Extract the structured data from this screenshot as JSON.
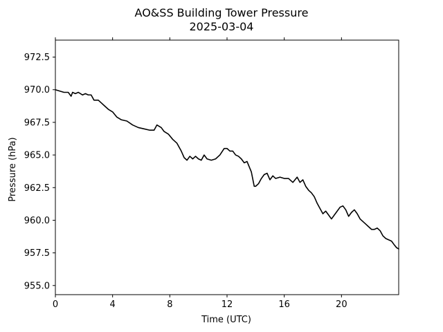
{
  "chart_data": {
    "type": "line",
    "title": "AO&SS Building Tower Pressure",
    "subtitle": "2025-03-04",
    "xlabel": "Time (UTC)",
    "ylabel": "Pressure (hPa)",
    "xlim": [
      0,
      24
    ],
    "ylim": [
      954.3,
      973.8
    ],
    "x_ticks": [
      0,
      4,
      8,
      12,
      16,
      20
    ],
    "x_tick_labels": [
      "0",
      "4",
      "8",
      "12",
      "16",
      "20"
    ],
    "y_ticks": [
      955.0,
      957.5,
      960.0,
      962.5,
      965.0,
      967.5,
      970.0,
      972.5
    ],
    "y_tick_labels": [
      "955.0",
      "957.5",
      "960.0",
      "962.5",
      "965.0",
      "967.5",
      "970.0",
      "972.5"
    ],
    "grid": false,
    "line_color": "#000000",
    "series": [
      {
        "x": [
          0.0,
          0.3,
          0.6,
          0.9,
          1.1,
          1.2,
          1.4,
          1.6,
          1.9,
          2.1,
          2.3,
          2.5,
          2.7,
          3.0,
          3.2,
          3.4,
          3.7,
          4.0,
          4.3,
          4.6,
          5.0,
          5.4,
          5.8,
          6.2,
          6.6,
          6.9,
          7.1,
          7.4,
          7.6,
          7.9,
          8.2,
          8.5,
          8.8,
          9.0,
          9.2,
          9.4,
          9.6,
          9.8,
          10.0,
          10.2,
          10.4,
          10.6,
          10.9,
          11.2,
          11.5,
          11.8,
          12.0,
          12.2,
          12.4,
          12.6,
          12.8,
          13.0,
          13.2,
          13.4,
          13.7,
          13.9,
          14.0,
          14.2,
          14.4,
          14.6,
          14.8,
          15.0,
          15.2,
          15.4,
          15.7,
          16.0,
          16.3,
          16.6,
          16.9,
          17.1,
          17.3,
          17.5,
          17.7,
          17.9,
          18.1,
          18.3,
          18.5,
          18.7,
          18.9,
          19.1,
          19.3,
          19.5,
          19.7,
          19.9,
          20.1,
          20.3,
          20.5,
          20.7,
          20.9,
          21.1,
          21.3,
          21.5,
          21.7,
          21.9,
          22.1,
          22.3,
          22.5,
          22.7,
          22.9,
          23.1,
          23.3,
          23.5,
          23.7,
          23.85,
          24.0
        ],
        "y": [
          970.0,
          969.9,
          969.8,
          969.8,
          969.5,
          969.8,
          969.7,
          969.8,
          969.6,
          969.7,
          969.6,
          969.6,
          969.2,
          969.2,
          969.0,
          968.8,
          968.5,
          968.3,
          967.9,
          967.7,
          967.6,
          967.3,
          967.1,
          967.0,
          966.9,
          966.9,
          967.3,
          967.1,
          966.8,
          966.6,
          966.2,
          965.9,
          965.3,
          964.8,
          964.6,
          964.9,
          964.7,
          964.9,
          964.7,
          964.6,
          965.0,
          964.7,
          964.6,
          964.7,
          965.0,
          965.5,
          965.5,
          965.3,
          965.3,
          965.0,
          964.9,
          964.7,
          964.4,
          964.5,
          963.7,
          962.6,
          962.6,
          962.8,
          963.2,
          963.5,
          963.6,
          963.1,
          963.4,
          963.2,
          963.3,
          963.2,
          963.2,
          962.9,
          963.3,
          962.9,
          963.1,
          962.6,
          962.3,
          962.1,
          961.8,
          961.3,
          960.9,
          960.5,
          960.7,
          960.4,
          960.1,
          960.4,
          960.7,
          961.0,
          961.1,
          960.8,
          960.3,
          960.6,
          960.8,
          960.5,
          960.1,
          959.9,
          959.7,
          959.5,
          959.3,
          959.3,
          959.4,
          959.2,
          958.8,
          958.6,
          958.5,
          958.4,
          958.1,
          957.9,
          957.8
        ]
      }
    ]
  }
}
